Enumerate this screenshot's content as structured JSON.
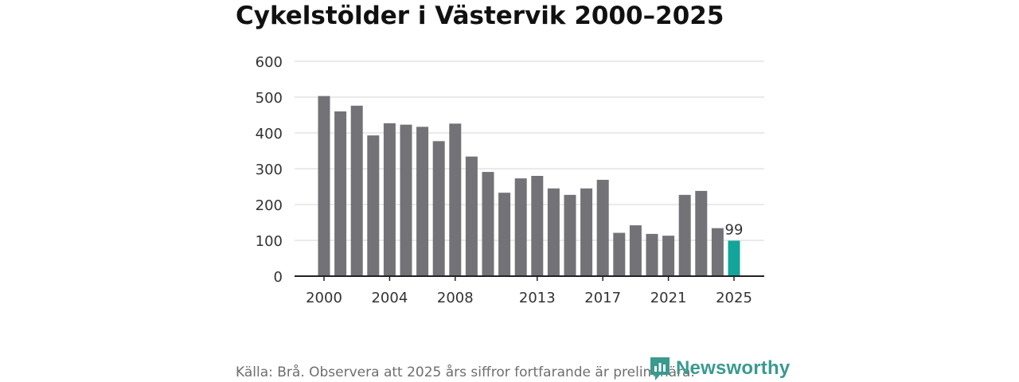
{
  "header": {
    "title": "Cykelstölder i Västervik 2000–2025"
  },
  "footer": {
    "source": "Källa: Brå. Observera att 2025 års siffror fortfarande är preliminära.",
    "brand": "Newsworthy"
  },
  "colors": {
    "bar": "#737277",
    "highlight": "#13a59a",
    "grid": "#dddddd",
    "axis": "#222222"
  },
  "chart_data": {
    "type": "bar",
    "title": "Cykelstölder i Västervik 2000–2025",
    "xlabel": "",
    "ylabel": "",
    "ylim": [
      0,
      600
    ],
    "yticks": [
      0,
      100,
      200,
      300,
      400,
      500,
      600
    ],
    "x_tick_labels": [
      "2000",
      "2004",
      "2008",
      "2013",
      "2017",
      "2021",
      "2025"
    ],
    "categories": [
      "2000",
      "2001",
      "2002",
      "2003",
      "2004",
      "2005",
      "2006",
      "2007",
      "2008",
      "2009",
      "2010",
      "2011",
      "2012",
      "2013",
      "2014",
      "2015",
      "2016",
      "2017",
      "2018",
      "2019",
      "2020",
      "2021",
      "2022",
      "2023",
      "2024",
      "2025"
    ],
    "values": [
      503,
      460,
      476,
      393,
      427,
      423,
      417,
      377,
      426,
      334,
      291,
      233,
      273,
      280,
      245,
      227,
      245,
      269,
      121,
      142,
      118,
      113,
      227,
      238,
      134,
      99
    ],
    "highlight_index": 25,
    "data_labels": [
      {
        "category": "2025",
        "text": "99"
      }
    ],
    "grid": true
  }
}
